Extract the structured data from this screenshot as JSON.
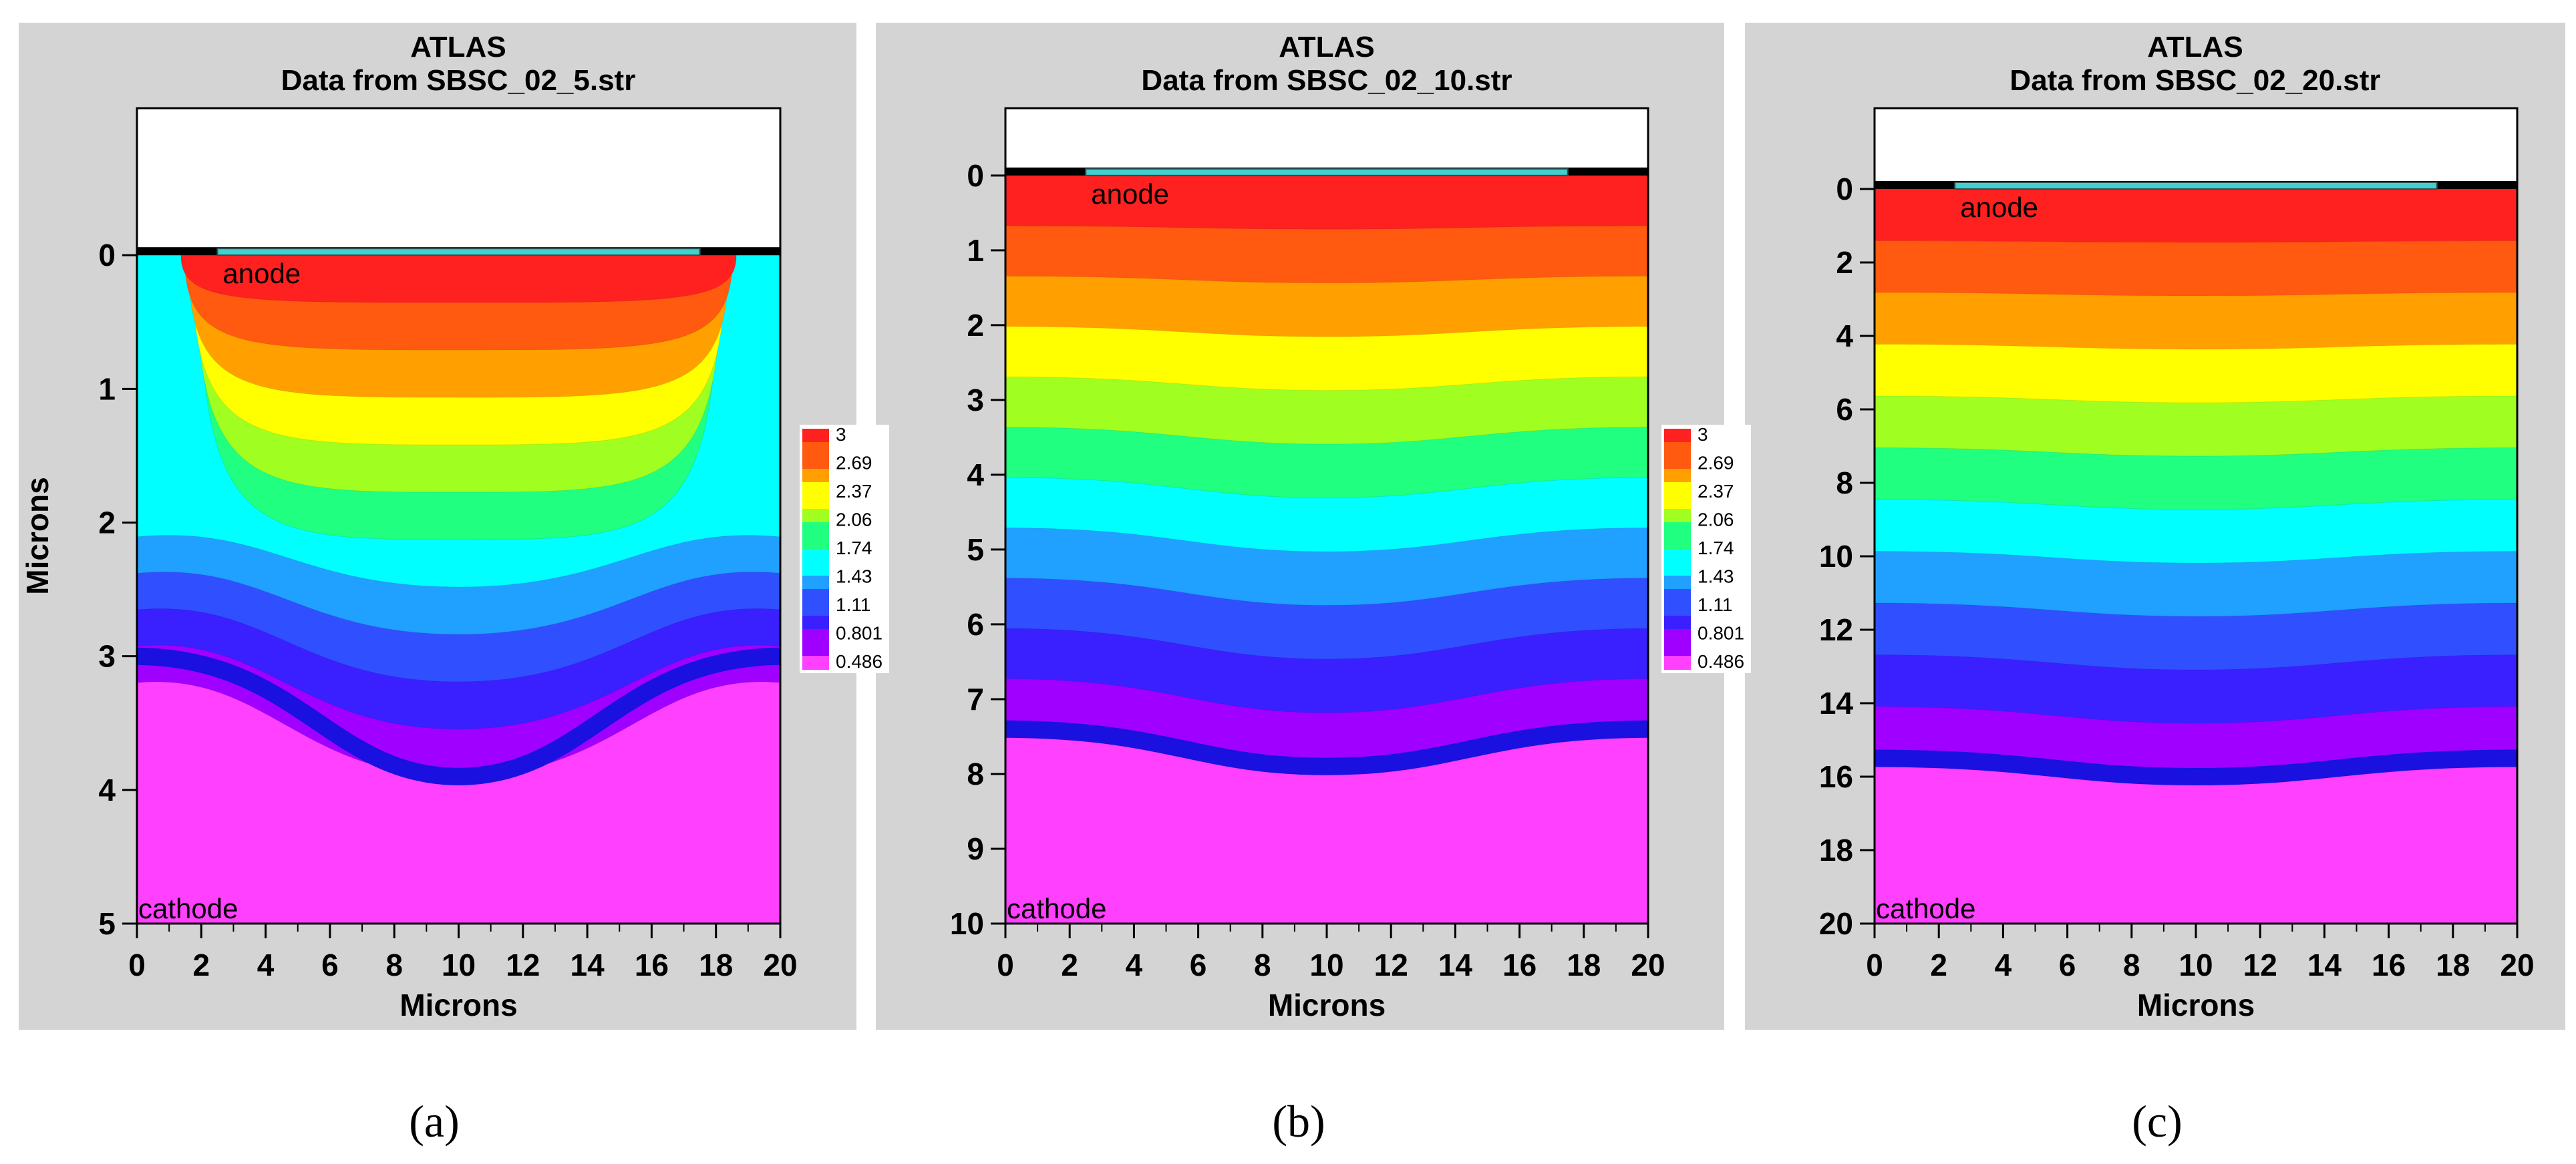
{
  "chart_data": [
    {
      "type": "heatmap",
      "panel_label": "a",
      "title": "ATLAS",
      "subtitle": "Data from SBSC_02_5.str",
      "xlabel": "Microns",
      "ylabel": "Microns",
      "xlim": [
        0,
        20
      ],
      "ylim": [
        -1.1,
        5
      ],
      "x_ticks": [
        0,
        2,
        4,
        6,
        8,
        10,
        12,
        14,
        16,
        18,
        20
      ],
      "y_ticks": [
        0,
        1,
        2,
        3,
        4,
        5
      ],
      "annotations": [
        "anode",
        "cathode"
      ],
      "anode_x_range": [
        2.5,
        17.5
      ],
      "depletion_depth_center": 3.9,
      "depletion_depth_edge": 3.0,
      "colorbar": {
        "labels": [
          "3",
          "2.69",
          "2.37",
          "2.06",
          "1.74",
          "1.43",
          "1.11",
          "0.801",
          "0.486"
        ],
        "min": 0.486,
        "max": 3
      }
    },
    {
      "type": "heatmap",
      "panel_label": "b",
      "title": "ATLAS",
      "subtitle": "Data from SBSC_02_10.str",
      "xlabel": "Microns",
      "ylabel": "",
      "xlim": [
        0,
        20
      ],
      "ylim": [
        -0.9,
        10
      ],
      "x_ticks": [
        0,
        2,
        4,
        6,
        8,
        10,
        12,
        14,
        16,
        18,
        20
      ],
      "y_ticks": [
        0,
        1,
        2,
        3,
        4,
        5,
        6,
        7,
        8,
        9,
        10
      ],
      "annotations": [
        "anode",
        "cathode"
      ],
      "anode_x_range": [
        2.5,
        17.5
      ],
      "depletion_depth_center": 7.9,
      "depletion_depth_edge": 7.4,
      "colorbar": {
        "labels": [
          "3",
          "2.69",
          "2.37",
          "2.06",
          "1.74",
          "1.43",
          "1.11",
          "0.801",
          "0.486"
        ],
        "min": 0.486,
        "max": 3
      }
    },
    {
      "type": "heatmap",
      "panel_label": "c",
      "title": "ATLAS",
      "subtitle": "Data from SBSC_02_20.str",
      "xlabel": "Microns",
      "ylabel": "",
      "xlim": [
        0,
        20
      ],
      "ylim": [
        -2.2,
        20
      ],
      "x_ticks": [
        0,
        2,
        4,
        6,
        8,
        10,
        12,
        14,
        16,
        18,
        20
      ],
      "y_ticks": [
        0,
        2,
        4,
        6,
        8,
        10,
        12,
        14,
        16,
        18,
        20
      ],
      "annotations": [
        "anode",
        "cathode"
      ],
      "anode_x_range": [
        2.5,
        17.5
      ],
      "depletion_depth_center": 16.0,
      "depletion_depth_edge": 15.5,
      "colorbar": null
    }
  ],
  "captions": [
    "(a)",
    "(b)",
    "(c)"
  ],
  "palette": [
    "#ff2020",
    "#ff5a10",
    "#ffa000",
    "#ffff00",
    "#a0ff20",
    "#20ff80",
    "#00ffff",
    "#20a0ff",
    "#3050ff",
    "#3a20ff",
    "#a000ff",
    "#ff40ff"
  ]
}
